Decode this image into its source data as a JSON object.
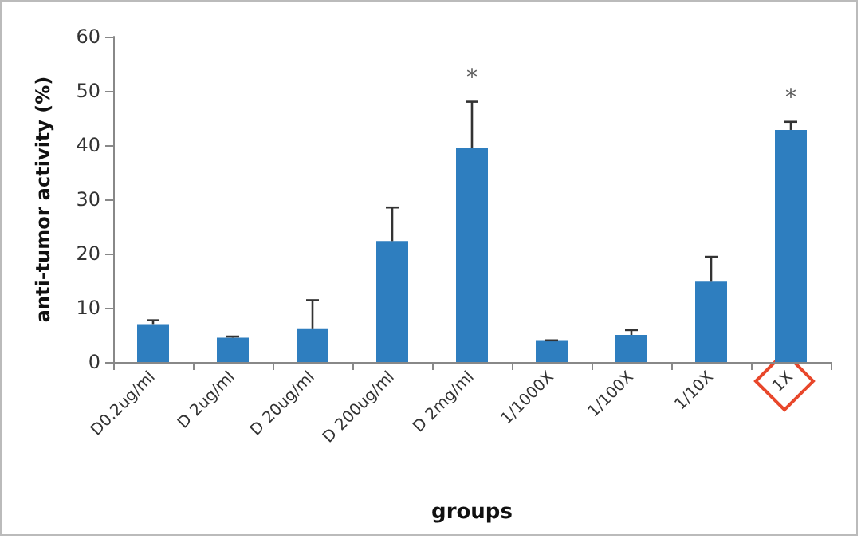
{
  "chart_data": {
    "type": "bar",
    "xlabel": "groups",
    "ylabel": "anti-tumor activity (%)",
    "categories": [
      "D0.2ug/ml",
      "D 2ug/ml",
      "D 20ug/ml",
      "D 200ug/ml",
      "D 2mg/ml",
      "1/1000X",
      "1/100X",
      "1/10X",
      "1X"
    ],
    "values": [
      7,
      4.5,
      6.2,
      22.3,
      39.5,
      3.9,
      5,
      14.8,
      42.8
    ],
    "errors": [
      0.7,
      0.2,
      5.2,
      6.2,
      8.5,
      0.1,
      0.9,
      4.6,
      1.5
    ],
    "color": "#2e7ebf",
    "ylim": [
      0,
      60
    ],
    "yticks": [
      0,
      10,
      20,
      30,
      40,
      50,
      60
    ],
    "grid": false,
    "value_labels": [
      null,
      null,
      null,
      null,
      "*",
      null,
      null,
      null,
      "*"
    ]
  }
}
